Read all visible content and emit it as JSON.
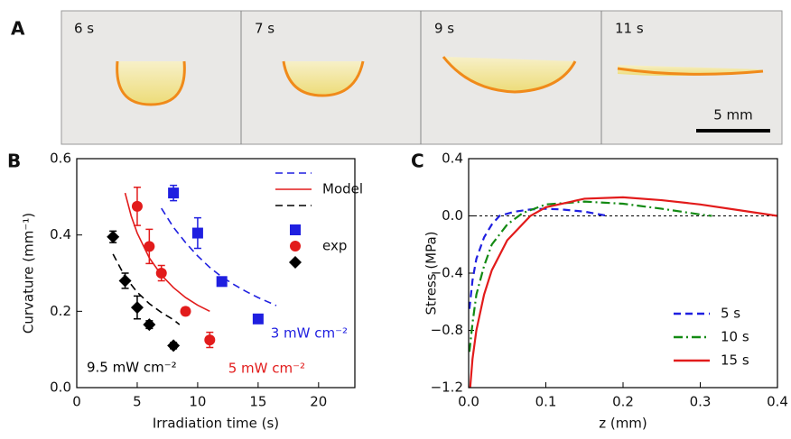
{
  "panel_a": {
    "label": "A",
    "frames": [
      "6 s",
      "7 s",
      "9 s",
      "11 s"
    ],
    "scale_bar": "5 mm"
  },
  "chart_data": [
    {
      "type": "scatter",
      "panel_label": "B",
      "xlabel": "Irradiation time (s)",
      "ylabel": "Curvature (mm⁻¹)",
      "xlim": [
        0,
        23
      ],
      "xticks": [
        0,
        5,
        10,
        15,
        20
      ],
      "ylim": [
        0,
        0.6
      ],
      "yticks": [
        {
          "value": 0,
          "label": "0.0"
        },
        {
          "value": 0.2,
          "label": "0.2"
        },
        {
          "value": 0.4,
          "label": "0.4"
        },
        {
          "value": 0.6,
          "label": "0.6"
        }
      ],
      "legend": [
        "Model",
        "exp"
      ],
      "series": [
        {
          "name": "3 mW cm⁻²",
          "color": "#1f1fe0",
          "marker": "square",
          "x": [
            8,
            10,
            12,
            15
          ],
          "values": [
            0.51,
            0.405,
            0.278,
            0.18
          ],
          "errors": [
            0.02,
            0.04,
            0.005,
            0.005
          ],
          "model_x": [
            7,
            8,
            9,
            10,
            11,
            12,
            13,
            14,
            15,
            16.5
          ],
          "model_values": [
            0.47,
            0.42,
            0.38,
            0.345,
            0.315,
            0.29,
            0.27,
            0.252,
            0.236,
            0.215
          ]
        },
        {
          "name": "5 mW cm⁻²",
          "color": "#e21b1b",
          "marker": "circle",
          "x": [
            5,
            6,
            7,
            9,
            11
          ],
          "values": [
            0.475,
            0.37,
            0.3,
            0.2,
            0.125
          ],
          "errors": [
            0.05,
            0.045,
            0.02,
            0.01,
            0.02
          ],
          "model_x": [
            4,
            4.5,
            5,
            6,
            7,
            8,
            9,
            10,
            11
          ],
          "model_values": [
            0.51,
            0.45,
            0.405,
            0.34,
            0.295,
            0.262,
            0.236,
            0.216,
            0.2
          ]
        },
        {
          "name": "9.5 mW cm⁻²",
          "color": "#000000",
          "marker": "diamond",
          "x": [
            3,
            4,
            5,
            6,
            8
          ],
          "values": [
            0.395,
            0.28,
            0.21,
            0.165,
            0.11
          ],
          "errors": [
            0.015,
            0.02,
            0.03,
            0.01,
            0.008
          ],
          "model_x": [
            3,
            4,
            5,
            6,
            7,
            8,
            8.5
          ],
          "model_values": [
            0.35,
            0.29,
            0.25,
            0.22,
            0.197,
            0.178,
            0.165
          ]
        }
      ]
    },
    {
      "type": "line",
      "panel_label": "C",
      "xlabel": "z (mm)",
      "ylabel": "Stress (MPa)",
      "xlim": [
        0,
        0.4
      ],
      "xticks": [
        {
          "value": 0,
          "label": "0.0"
        },
        {
          "value": 0.1,
          "label": "0.1"
        },
        {
          "value": 0.2,
          "label": "0.2"
        },
        {
          "value": 0.3,
          "label": "0.3"
        },
        {
          "value": 0.4,
          "label": "0.4"
        }
      ],
      "ylim": [
        -1.2,
        0.4
      ],
      "yticks": [
        {
          "value": -1.2,
          "label": "−1.2"
        },
        {
          "value": -0.8,
          "label": "−0.8"
        },
        {
          "value": -0.4,
          "label": "−0.4"
        },
        {
          "value": 0,
          "label": "0.0"
        },
        {
          "value": 0.4,
          "label": "0.4"
        }
      ],
      "reference_line": 0,
      "legend_position": "lower right",
      "series": [
        {
          "name": "5 s",
          "color": "#1f1fe0",
          "dash": "dashed",
          "x": [
            0.001,
            0.005,
            0.01,
            0.02,
            0.03,
            0.04,
            0.06,
            0.08,
            0.1,
            0.12,
            0.15,
            0.18
          ],
          "values": [
            -0.65,
            -0.45,
            -0.3,
            -0.15,
            -0.06,
            0,
            0.03,
            0.045,
            0.05,
            0.045,
            0.03,
            0
          ]
        },
        {
          "name": "10 s",
          "color": "#138a13",
          "dash": "dashdot",
          "x": [
            0.001,
            0.005,
            0.01,
            0.02,
            0.03,
            0.05,
            0.07,
            0.1,
            0.15,
            0.2,
            0.25,
            0.3,
            0.315
          ],
          "values": [
            -0.95,
            -0.75,
            -0.55,
            -0.35,
            -0.2,
            -0.06,
            0.02,
            0.08,
            0.1,
            0.085,
            0.05,
            0.01,
            0
          ]
        },
        {
          "name": "15 s",
          "color": "#e21b1b",
          "dash": "solid",
          "x": [
            0.002,
            0.005,
            0.01,
            0.02,
            0.03,
            0.05,
            0.08,
            0.1,
            0.15,
            0.2,
            0.25,
            0.3,
            0.35,
            0.4
          ],
          "values": [
            -1.2,
            -1.0,
            -0.8,
            -0.55,
            -0.38,
            -0.17,
            0,
            0.06,
            0.12,
            0.13,
            0.11,
            0.08,
            0.04,
            0
          ]
        }
      ]
    }
  ]
}
